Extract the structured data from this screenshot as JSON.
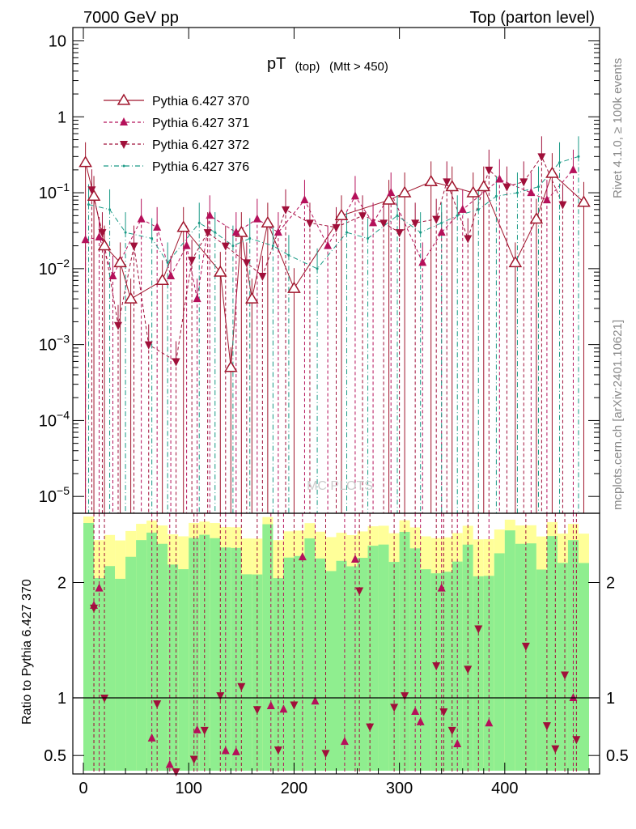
{
  "header": {
    "left": "7000 GeV pp",
    "right": "Top (parton level)"
  },
  "side_labels": {
    "rivet": "Rivet 4.1.0, ≥ 100k events",
    "mcplots": "mcplots.cern.ch [arXiv:2401.10621]"
  },
  "watermark": "MC PLOTS",
  "colors": {
    "series370": "#a0162d",
    "series371": "#b5105a",
    "series372": "#a0103a",
    "series376": "#1a9a86",
    "band_inner": "#8fee8f",
    "band_outer": "#ffff99"
  },
  "chart_data": [
    {
      "type": "line",
      "title": "pT",
      "title_sub": "(top)",
      "title_cut": "(Mtt > 450)",
      "xlabel": "",
      "ylabel": "",
      "yscale": "log",
      "xlim": [
        -10,
        490
      ],
      "ylim": [
        6e-06,
        15
      ],
      "y_ticks": [
        {
          "value": 10,
          "label": "10"
        },
        {
          "value": 1,
          "label": "1"
        },
        {
          "value": 0.1,
          "label": "10",
          "exp": "−1"
        },
        {
          "value": 0.01,
          "label": "10",
          "exp": "−2"
        },
        {
          "value": 0.001,
          "label": "10",
          "exp": "−3"
        },
        {
          "value": 0.0001,
          "label": "10",
          "exp": "−4"
        },
        {
          "value": 1e-05,
          "label": "10",
          "exp": "−5"
        }
      ],
      "legend_position": "top-left",
      "series": [
        {
          "name": "Pythia 6.427 370",
          "marker": "triangle-open",
          "style": "solid",
          "x": [
            2,
            10,
            20,
            35,
            45,
            75,
            95,
            130,
            140,
            150,
            160,
            175,
            200,
            245,
            290,
            305,
            330,
            350,
            370,
            380,
            410,
            430,
            445,
            475
          ],
          "y": [
            0.25,
            0.09,
            0.02,
            0.012,
            0.004,
            0.007,
            0.035,
            0.009,
            0.0005,
            0.03,
            0.004,
            0.04,
            0.0055,
            0.05,
            0.08,
            0.1,
            0.14,
            0.12,
            0.1,
            0.12,
            0.012,
            0.045,
            0.18,
            0.075
          ]
        },
        {
          "name": "Pythia 6.427 371",
          "marker": "triangle-up",
          "style": "dashed",
          "x": [
            2,
            15,
            28,
            55,
            70,
            83,
            98,
            108,
            120,
            145,
            165,
            185,
            210,
            232,
            258,
            275,
            292,
            322,
            340,
            360,
            395,
            425,
            440,
            465
          ],
          "y": [
            0.024,
            0.026,
            0.008,
            0.045,
            0.035,
            0.008,
            0.02,
            0.004,
            0.05,
            0.03,
            0.045,
            0.03,
            0.08,
            0.02,
            0.09,
            0.04,
            0.1,
            0.012,
            0.03,
            0.06,
            0.15,
            0.1,
            0.08,
            0.2
          ]
        },
        {
          "name": "Pythia 6.427 372",
          "marker": "triangle-down",
          "style": "dashed",
          "x": [
            8,
            18,
            33,
            48,
            62,
            88,
            103,
            118,
            135,
            155,
            170,
            192,
            215,
            240,
            265,
            285,
            300,
            315,
            335,
            345,
            365,
            385,
            402,
            418,
            435,
            455
          ],
          "y": [
            0.11,
            0.03,
            0.0018,
            0.02,
            0.001,
            0.0006,
            0.013,
            0.03,
            0.02,
            0.012,
            0.008,
            0.06,
            0.04,
            0.035,
            0.05,
            0.04,
            0.03,
            0.04,
            0.045,
            0.14,
            0.025,
            0.2,
            0.12,
            0.14,
            0.3,
            0.07
          ]
        },
        {
          "name": "Pythia 6.427 376",
          "marker": "dot",
          "style": "dash-dot",
          "x": [
            5,
            25,
            40,
            65,
            80,
            110,
            125,
            142,
            158,
            180,
            195,
            222,
            250,
            270,
            298,
            320,
            340,
            355,
            375,
            392,
            412,
            432,
            452,
            470
          ],
          "y": [
            0.07,
            0.06,
            0.03,
            0.025,
            0.012,
            0.04,
            0.03,
            0.02,
            0.025,
            0.02,
            0.015,
            0.01,
            0.03,
            0.025,
            0.05,
            0.03,
            0.04,
            0.05,
            0.06,
            0.09,
            0.1,
            0.12,
            0.25,
            0.3
          ]
        }
      ]
    },
    {
      "type": "line",
      "title": "",
      "xlabel": "",
      "ylabel": "Ratio to Pythia 6.427 370",
      "yscale": "linear",
      "xlim": [
        -10,
        490
      ],
      "ylim": [
        0.34,
        2.6
      ],
      "y_ticks": [
        {
          "value": 2,
          "label": "2"
        },
        {
          "value": 1,
          "label": "1"
        },
        {
          "value": 0.5,
          "label": "0.5"
        }
      ],
      "x_ticks": [
        {
          "value": 0,
          "label": "0"
        },
        {
          "value": 100,
          "label": "100"
        },
        {
          "value": 200,
          "label": "200"
        },
        {
          "value": 300,
          "label": "300"
        },
        {
          "value": 400,
          "label": "400"
        }
      ],
      "reference_line": 1,
      "series": [
        {
          "name": "Pythia 6.427 371",
          "marker": "triangle-up",
          "style": "dashed",
          "x": [
            10,
            15,
            65,
            82,
            108,
            135,
            145,
            178,
            190,
            208,
            220,
            248,
            258,
            315,
            320,
            340,
            355,
            385,
            465
          ],
          "y": [
            1.8,
            1.95,
            0.65,
            0.42,
            0.72,
            0.54,
            0.53,
            0.93,
            0.9,
            2.22,
            0.97,
            0.62,
            2.2,
            0.88,
            0.79,
            1.95,
            0.6,
            0.78,
            1.0
          ]
        },
        {
          "name": "Pythia 6.427 372",
          "marker": "triangle-down",
          "style": "dashed",
          "x": [
            10,
            20,
            70,
            88,
            105,
            115,
            130,
            150,
            165,
            185,
            200,
            230,
            262,
            272,
            295,
            305,
            335,
            342,
            350,
            365,
            375,
            420,
            440,
            448,
            457,
            468
          ],
          "y": [
            1.78,
            1.0,
            0.95,
            0.36,
            0.47,
            0.72,
            1.02,
            1.1,
            0.9,
            0.55,
            0.94,
            0.52,
            1.93,
            0.75,
            0.92,
            1.02,
            1.28,
            0.88,
            0.72,
            1.25,
            1.6,
            1.45,
            0.76,
            0.56,
            1.2,
            0.64
          ]
        }
      ]
    }
  ]
}
